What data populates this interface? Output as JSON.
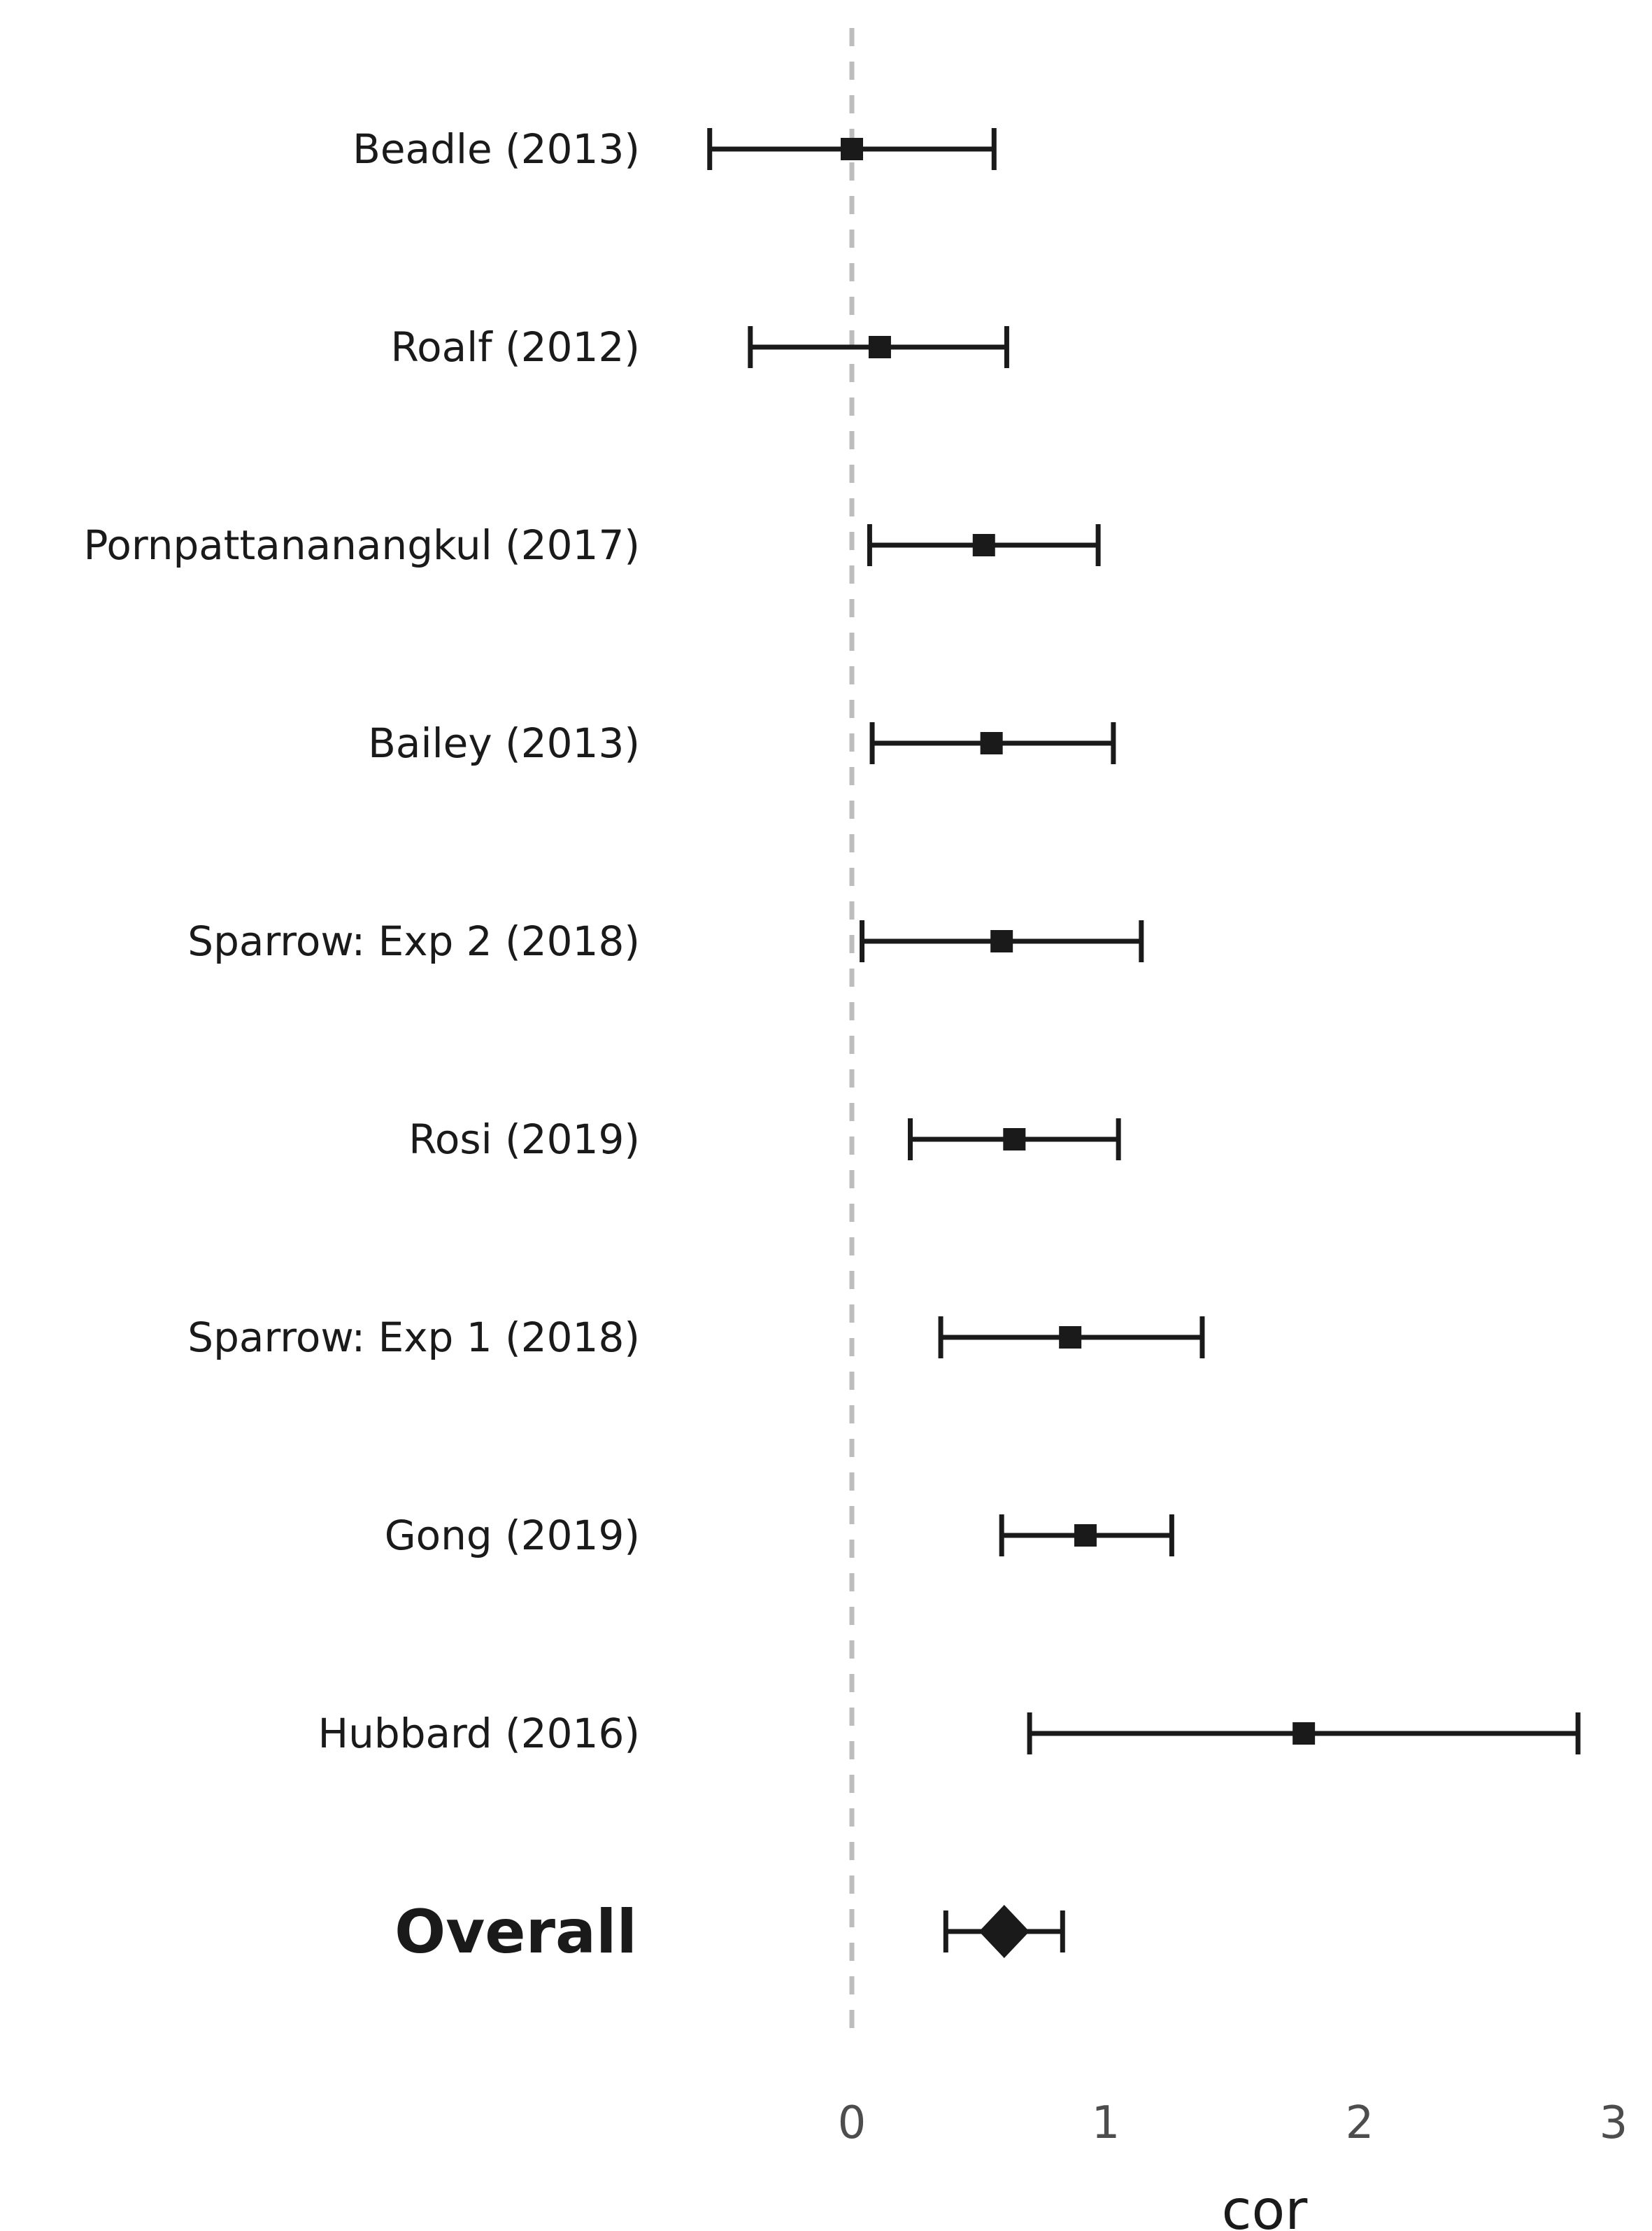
{
  "chart_data": {
    "type": "forest",
    "xlabel": "cor",
    "xlim": [
      -0.08,
      3.0
    ],
    "xticks": [
      0,
      1,
      2,
      3
    ],
    "reference_line": 0,
    "grid": false,
    "colors": {
      "marks": "#1a1a1a",
      "reference": "#bdbdbd",
      "ticks": "#4d4d4d"
    },
    "studies": [
      {
        "label": "Beadle (2013)",
        "estimate": 0.0,
        "lower": -0.56,
        "upper": 0.56
      },
      {
        "label": "Roalf (2012)",
        "estimate": 0.11,
        "lower": -0.4,
        "upper": 0.61
      },
      {
        "label": "Pornpattananangkul (2017)",
        "estimate": 0.52,
        "lower": 0.07,
        "upper": 0.97
      },
      {
        "label": "Bailey (2013)",
        "estimate": 0.55,
        "lower": 0.08,
        "upper": 1.03
      },
      {
        "label": "Sparrow: Exp 2 (2018)",
        "estimate": 0.59,
        "lower": 0.04,
        "upper": 1.14
      },
      {
        "label": "Rosi (2019)",
        "estimate": 0.64,
        "lower": 0.23,
        "upper": 1.05
      },
      {
        "label": "Sparrow: Exp 1 (2018)",
        "estimate": 0.86,
        "lower": 0.35,
        "upper": 1.38
      },
      {
        "label": "Gong (2019)",
        "estimate": 0.92,
        "lower": 0.59,
        "upper": 1.26
      },
      {
        "label": "Hubbard (2016)",
        "estimate": 1.78,
        "lower": 0.7,
        "upper": 2.86
      }
    ],
    "overall": {
      "label": "Overall",
      "estimate": 0.6,
      "lower": 0.37,
      "upper": 0.83
    }
  }
}
